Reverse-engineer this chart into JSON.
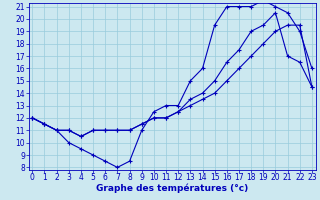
{
  "xlabel": "Graphe des températures (°c)",
  "bg_color": "#cce8f0",
  "line_color": "#0000bb",
  "grid_color": "#99ccdd",
  "xlim": [
    0,
    23
  ],
  "ylim": [
    8,
    21
  ],
  "xticks": [
    0,
    1,
    2,
    3,
    4,
    5,
    6,
    7,
    8,
    9,
    10,
    11,
    12,
    13,
    14,
    15,
    16,
    17,
    18,
    19,
    20,
    21,
    22,
    23
  ],
  "yticks": [
    8,
    9,
    10,
    11,
    12,
    13,
    14,
    15,
    16,
    17,
    18,
    19,
    20,
    21
  ],
  "line1_x": [
    0,
    1,
    2,
    3,
    4,
    5,
    6,
    7,
    8,
    9,
    10,
    11,
    12,
    13,
    14,
    15,
    16,
    17,
    18,
    19,
    20,
    21,
    22,
    23
  ],
  "line1_y": [
    12,
    11.5,
    11,
    10,
    9.5,
    9,
    8.5,
    8,
    8.5,
    11,
    12.5,
    13,
    13,
    15,
    16,
    19.5,
    21,
    21,
    21,
    21.5,
    21,
    20.5,
    19,
    16
  ],
  "line2_x": [
    0,
    1,
    2,
    3,
    4,
    5,
    6,
    7,
    8,
    9,
    10,
    11,
    12,
    13,
    14,
    15,
    16,
    17,
    18,
    19,
    20,
    21,
    22,
    23
  ],
  "line2_y": [
    12,
    11.5,
    11,
    11,
    10.5,
    11,
    11,
    11,
    11,
    11.5,
    12,
    12,
    12.5,
    13,
    13.5,
    14,
    15,
    16,
    17,
    18,
    19,
    19.5,
    19.5,
    14.5
  ],
  "line3_x": [
    0,
    1,
    2,
    3,
    4,
    5,
    6,
    7,
    8,
    9,
    10,
    11,
    12,
    13,
    14,
    15,
    16,
    17,
    18,
    19,
    20,
    21,
    22,
    23
  ],
  "line3_y": [
    12,
    11.5,
    11,
    11,
    10.5,
    11,
    11,
    11,
    11,
    11.5,
    12,
    12,
    12.5,
    13.5,
    14,
    15,
    16.5,
    17.5,
    19,
    19.5,
    20.5,
    17,
    16.5,
    14.5
  ],
  "tick_fontsize": 5.5,
  "xlabel_fontsize": 6.5
}
